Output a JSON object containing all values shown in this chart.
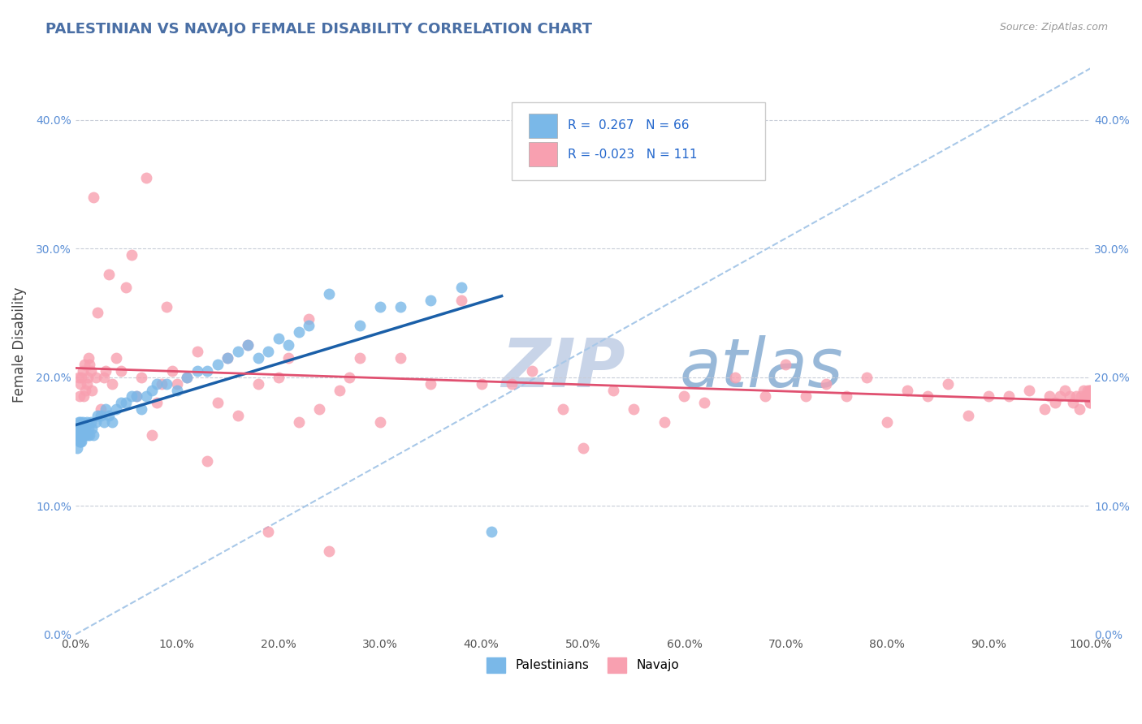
{
  "title": "PALESTINIAN VS NAVAJO FEMALE DISABILITY CORRELATION CHART",
  "source": "Source: ZipAtlas.com",
  "ylabel": "Female Disability",
  "xlim": [
    0.0,
    1.0
  ],
  "ylim": [
    0.0,
    0.45
  ],
  "xticks": [
    0.0,
    0.1,
    0.2,
    0.3,
    0.4,
    0.5,
    0.6,
    0.7,
    0.8,
    0.9,
    1.0
  ],
  "yticks": [
    0.0,
    0.1,
    0.2,
    0.3,
    0.4
  ],
  "ytick_labels": [
    "0.0%",
    "10.0%",
    "20.0%",
    "30.0%",
    "40.0%"
  ],
  "xtick_labels": [
    "0.0%",
    "10.0%",
    "20.0%",
    "30.0%",
    "40.0%",
    "50.0%",
    "60.0%",
    "70.0%",
    "80.0%",
    "90.0%",
    "100.0%"
  ],
  "palestinians_R": "0.267",
  "palestinians_N": "66",
  "navajo_R": "-0.023",
  "navajo_N": "111",
  "blue_color": "#7ab8e8",
  "pink_color": "#f8a0b0",
  "blue_line_color": "#1a5fa8",
  "pink_line_color": "#e05070",
  "grid_color": "#c8cdd8",
  "title_color": "#4a6fa5",
  "watermark_ZIP_color": "#c8d4e8",
  "watermark_atlas_color": "#98b8d8",
  "legend_label_blue": "Palestinians",
  "legend_label_pink": "Navajo",
  "palestinians_x": [
    0.001,
    0.002,
    0.002,
    0.003,
    0.003,
    0.003,
    0.004,
    0.004,
    0.004,
    0.005,
    0.005,
    0.005,
    0.006,
    0.006,
    0.007,
    0.007,
    0.008,
    0.008,
    0.009,
    0.01,
    0.01,
    0.011,
    0.012,
    0.013,
    0.014,
    0.015,
    0.016,
    0.018,
    0.02,
    0.022,
    0.025,
    0.028,
    0.03,
    0.033,
    0.036,
    0.04,
    0.045,
    0.05,
    0.055,
    0.06,
    0.065,
    0.07,
    0.075,
    0.08,
    0.09,
    0.1,
    0.11,
    0.12,
    0.13,
    0.14,
    0.15,
    0.16,
    0.17,
    0.18,
    0.19,
    0.2,
    0.21,
    0.22,
    0.23,
    0.25,
    0.28,
    0.3,
    0.32,
    0.35,
    0.38,
    0.41
  ],
  "palestinians_y": [
    0.155,
    0.16,
    0.145,
    0.155,
    0.165,
    0.155,
    0.15,
    0.16,
    0.155,
    0.15,
    0.155,
    0.165,
    0.15,
    0.16,
    0.155,
    0.165,
    0.155,
    0.16,
    0.16,
    0.16,
    0.155,
    0.165,
    0.155,
    0.16,
    0.155,
    0.165,
    0.16,
    0.155,
    0.165,
    0.17,
    0.17,
    0.165,
    0.175,
    0.17,
    0.165,
    0.175,
    0.18,
    0.18,
    0.185,
    0.185,
    0.175,
    0.185,
    0.19,
    0.195,
    0.195,
    0.19,
    0.2,
    0.205,
    0.205,
    0.21,
    0.215,
    0.22,
    0.225,
    0.215,
    0.22,
    0.23,
    0.225,
    0.235,
    0.24,
    0.265,
    0.24,
    0.255,
    0.255,
    0.26,
    0.27,
    0.08
  ],
  "navajo_x": [
    0.003,
    0.004,
    0.005,
    0.006,
    0.007,
    0.008,
    0.009,
    0.01,
    0.011,
    0.012,
    0.013,
    0.014,
    0.015,
    0.016,
    0.018,
    0.02,
    0.022,
    0.025,
    0.028,
    0.03,
    0.033,
    0.036,
    0.04,
    0.045,
    0.05,
    0.055,
    0.06,
    0.065,
    0.07,
    0.075,
    0.08,
    0.085,
    0.09,
    0.095,
    0.1,
    0.11,
    0.12,
    0.13,
    0.14,
    0.15,
    0.16,
    0.17,
    0.18,
    0.19,
    0.2,
    0.21,
    0.22,
    0.23,
    0.24,
    0.25,
    0.26,
    0.27,
    0.28,
    0.3,
    0.32,
    0.35,
    0.38,
    0.4,
    0.43,
    0.45,
    0.48,
    0.5,
    0.53,
    0.55,
    0.58,
    0.6,
    0.62,
    0.65,
    0.68,
    0.7,
    0.72,
    0.74,
    0.76,
    0.78,
    0.8,
    0.82,
    0.84,
    0.86,
    0.88,
    0.9,
    0.92,
    0.94,
    0.955,
    0.96,
    0.965,
    0.97,
    0.975,
    0.98,
    0.983,
    0.986,
    0.989,
    0.991,
    0.993,
    0.995,
    0.996,
    0.997,
    0.998,
    0.999,
    1.0,
    1.0,
    1.0,
    1.0,
    1.0,
    1.0,
    1.0,
    1.0,
    1.0,
    1.0,
    1.0,
    1.0,
    1.0
  ],
  "navajo_y": [
    0.2,
    0.185,
    0.195,
    0.2,
    0.205,
    0.185,
    0.21,
    0.19,
    0.195,
    0.2,
    0.215,
    0.21,
    0.205,
    0.19,
    0.34,
    0.2,
    0.25,
    0.175,
    0.2,
    0.205,
    0.28,
    0.195,
    0.215,
    0.205,
    0.27,
    0.295,
    0.185,
    0.2,
    0.355,
    0.155,
    0.18,
    0.195,
    0.255,
    0.205,
    0.195,
    0.2,
    0.22,
    0.135,
    0.18,
    0.215,
    0.17,
    0.225,
    0.195,
    0.08,
    0.2,
    0.215,
    0.165,
    0.245,
    0.175,
    0.065,
    0.19,
    0.2,
    0.215,
    0.165,
    0.215,
    0.195,
    0.26,
    0.195,
    0.195,
    0.205,
    0.175,
    0.145,
    0.19,
    0.175,
    0.165,
    0.185,
    0.18,
    0.2,
    0.185,
    0.21,
    0.185,
    0.195,
    0.185,
    0.2,
    0.165,
    0.19,
    0.185,
    0.195,
    0.17,
    0.185,
    0.185,
    0.19,
    0.175,
    0.185,
    0.18,
    0.185,
    0.19,
    0.185,
    0.18,
    0.185,
    0.175,
    0.185,
    0.19,
    0.185,
    0.185,
    0.19,
    0.185,
    0.185,
    0.18,
    0.185,
    0.185,
    0.18,
    0.185,
    0.19,
    0.185,
    0.185,
    0.185,
    0.19,
    0.185,
    0.185,
    0.185
  ]
}
